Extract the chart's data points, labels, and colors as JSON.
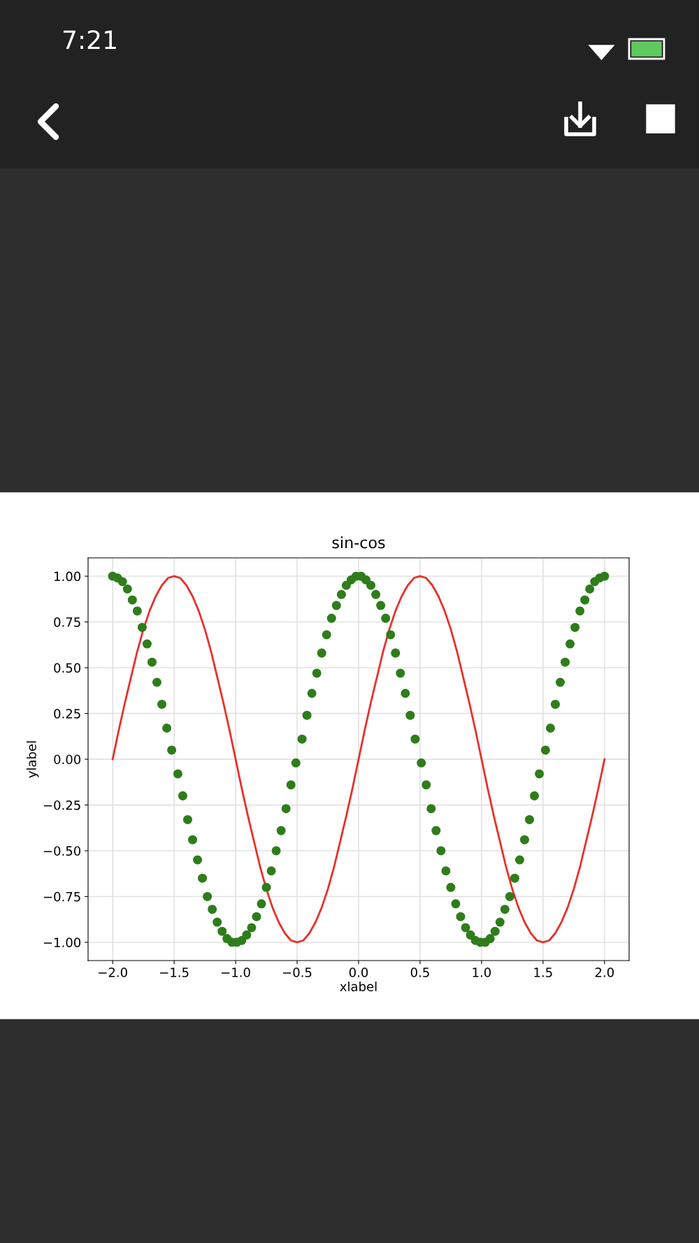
{
  "chart_data": {
    "type": "line",
    "title": "sin-cos",
    "xlabel": "xlabel",
    "ylabel": "ylabel",
    "annotations": [
      "7:21"
    ],
    "xlim": [
      -2.2,
      2.2
    ],
    "ylim": [
      -1.1,
      1.1
    ],
    "xticks": [
      {
        "value": -2,
        "label": "−2.0"
      },
      {
        "value": -1.5,
        "label": "−1.5"
      },
      {
        "value": -1,
        "label": "−1.0"
      },
      {
        "value": -0.5,
        "label": "−0.5"
      },
      {
        "value": 0,
        "label": "0.0"
      },
      {
        "value": 0.5,
        "label": "0.5"
      },
      {
        "value": 1,
        "label": "1.0"
      },
      {
        "value": 1.5,
        "label": "1.5"
      },
      {
        "value": 2,
        "label": "2.0"
      }
    ],
    "yticks": [
      {
        "value": -1,
        "label": "−1.00"
      },
      {
        "value": -0.75,
        "label": "−0.75"
      },
      {
        "value": -0.5,
        "label": "−0.50"
      },
      {
        "value": -0.25,
        "label": "−0.25"
      },
      {
        "value": 0,
        "label": "0.00"
      },
      {
        "value": 0.25,
        "label": "0.25"
      },
      {
        "value": 0.5,
        "label": "0.50"
      },
      {
        "value": 0.75,
        "label": "0.75"
      },
      {
        "value": 1,
        "label": "1.00"
      }
    ],
    "grid": true,
    "series": [
      {
        "color": "#e8302a",
        "line_style": "solid",
        "x": [
          -2,
          -1.95,
          -1.9,
          -1.85,
          -1.8,
          -1.75,
          -1.7,
          -1.65,
          -1.6,
          -1.55,
          -1.5,
          -1.45,
          -1.4,
          -1.35,
          -1.3,
          -1.25,
          -1.2,
          -1.15,
          -1.1,
          -1.05,
          -1,
          -0.95,
          -0.9,
          -0.85,
          -0.8,
          -0.75,
          -0.7,
          -0.65,
          -0.6,
          -0.55,
          -0.5,
          -0.45,
          -0.4,
          -0.35,
          -0.3,
          -0.25,
          -0.2,
          -0.15,
          -0.1,
          -0.05,
          0,
          0.05,
          0.1,
          0.15,
          0.2,
          0.25,
          0.3,
          0.35,
          0.4,
          0.45,
          0.5,
          0.55,
          0.6,
          0.65,
          0.7,
          0.75,
          0.8,
          0.85,
          0.9,
          0.95,
          1,
          1.05,
          1.1,
          1.15,
          1.2,
          1.25,
          1.3,
          1.35,
          1.4,
          1.45,
          1.5,
          1.55,
          1.6,
          1.65,
          1.7,
          1.75,
          1.8,
          1.85,
          1.9,
          1.95,
          2
        ],
        "values": [
          0,
          0.16,
          0.31,
          0.45,
          0.59,
          0.71,
          0.81,
          0.89,
          0.95,
          0.99,
          1,
          0.99,
          0.95,
          0.89,
          0.81,
          0.71,
          0.59,
          0.45,
          0.31,
          0.16,
          0,
          -0.16,
          -0.31,
          -0.45,
          -0.59,
          -0.71,
          -0.81,
          -0.89,
          -0.95,
          -0.99,
          -1,
          -0.99,
          -0.95,
          -0.89,
          -0.81,
          -0.71,
          -0.59,
          -0.45,
          -0.31,
          -0.16,
          0,
          0.16,
          0.31,
          0.45,
          0.59,
          0.71,
          0.81,
          0.89,
          0.95,
          0.99,
          1,
          0.99,
          0.95,
          0.89,
          0.81,
          0.71,
          0.59,
          0.45,
          0.31,
          0.16,
          0,
          -0.16,
          -0.31,
          -0.45,
          -0.59,
          -0.71,
          -0.81,
          -0.89,
          -0.95,
          -0.99,
          -1,
          -0.99,
          -0.95,
          -0.89,
          -0.81,
          -0.71,
          -0.59,
          -0.45,
          -0.31,
          -0.16,
          0
        ]
      },
      {
        "type": "scatter",
        "color": "#2e7d1a",
        "marker": "circle",
        "x": [
          -2,
          -1.96,
          -1.92,
          -1.88,
          -1.84,
          -1.8,
          -1.76,
          -1.72,
          -1.68,
          -1.64,
          -1.6,
          -1.56,
          -1.52,
          -1.47,
          -1.43,
          -1.39,
          -1.35,
          -1.31,
          -1.27,
          -1.23,
          -1.19,
          -1.15,
          -1.11,
          -1.07,
          -1.03,
          -0.99,
          -0.95,
          -0.91,
          -0.87,
          -0.83,
          -0.79,
          -0.75,
          -0.71,
          -0.67,
          -0.63,
          -0.59,
          -0.55,
          -0.51,
          -0.46,
          -0.42,
          -0.38,
          -0.34,
          -0.3,
          -0.26,
          -0.22,
          -0.18,
          -0.14,
          -0.1,
          -0.06,
          -0.02,
          0.02,
          0.06,
          0.1,
          0.14,
          0.18,
          0.22,
          0.26,
          0.3,
          0.34,
          0.38,
          0.42,
          0.46,
          0.51,
          0.55,
          0.59,
          0.63,
          0.67,
          0.71,
          0.75,
          0.79,
          0.83,
          0.87,
          0.91,
          0.95,
          0.99,
          1.03,
          1.07,
          1.11,
          1.15,
          1.19,
          1.23,
          1.27,
          1.31,
          1.35,
          1.39,
          1.43,
          1.47,
          1.52,
          1.56,
          1.6,
          1.64,
          1.68,
          1.72,
          1.76,
          1.8,
          1.84,
          1.88,
          1.92,
          1.96,
          2
        ],
        "values": [
          1,
          0.99,
          0.97,
          0.93,
          0.87,
          0.81,
          0.72,
          0.63,
          0.53,
          0.42,
          0.3,
          0.17,
          0.05,
          -0.08,
          -0.2,
          -0.33,
          -0.44,
          -0.55,
          -0.65,
          -0.75,
          -0.82,
          -0.89,
          -0.94,
          -0.98,
          -1,
          -1,
          -0.99,
          -0.96,
          -0.92,
          -0.86,
          -0.79,
          -0.7,
          -0.61,
          -0.5,
          -0.39,
          -0.27,
          -0.14,
          -0.02,
          0.11,
          0.24,
          0.36,
          0.47,
          0.58,
          0.68,
          0.77,
          0.84,
          0.9,
          0.95,
          0.98,
          1,
          1,
          0.98,
          0.95,
          0.9,
          0.84,
          0.77,
          0.68,
          0.58,
          0.47,
          0.36,
          0.24,
          0.11,
          -0.02,
          -0.14,
          -0.27,
          -0.39,
          -0.5,
          -0.61,
          -0.7,
          -0.79,
          -0.86,
          -0.92,
          -0.96,
          -0.99,
          -1,
          -1,
          -0.98,
          -0.94,
          -0.89,
          -0.82,
          -0.75,
          -0.65,
          -0.55,
          -0.44,
          -0.33,
          -0.2,
          -0.08,
          0.05,
          0.17,
          0.3,
          0.42,
          0.53,
          0.63,
          0.72,
          0.81,
          0.87,
          0.93,
          0.97,
          0.99,
          1
        ]
      }
    ]
  }
}
